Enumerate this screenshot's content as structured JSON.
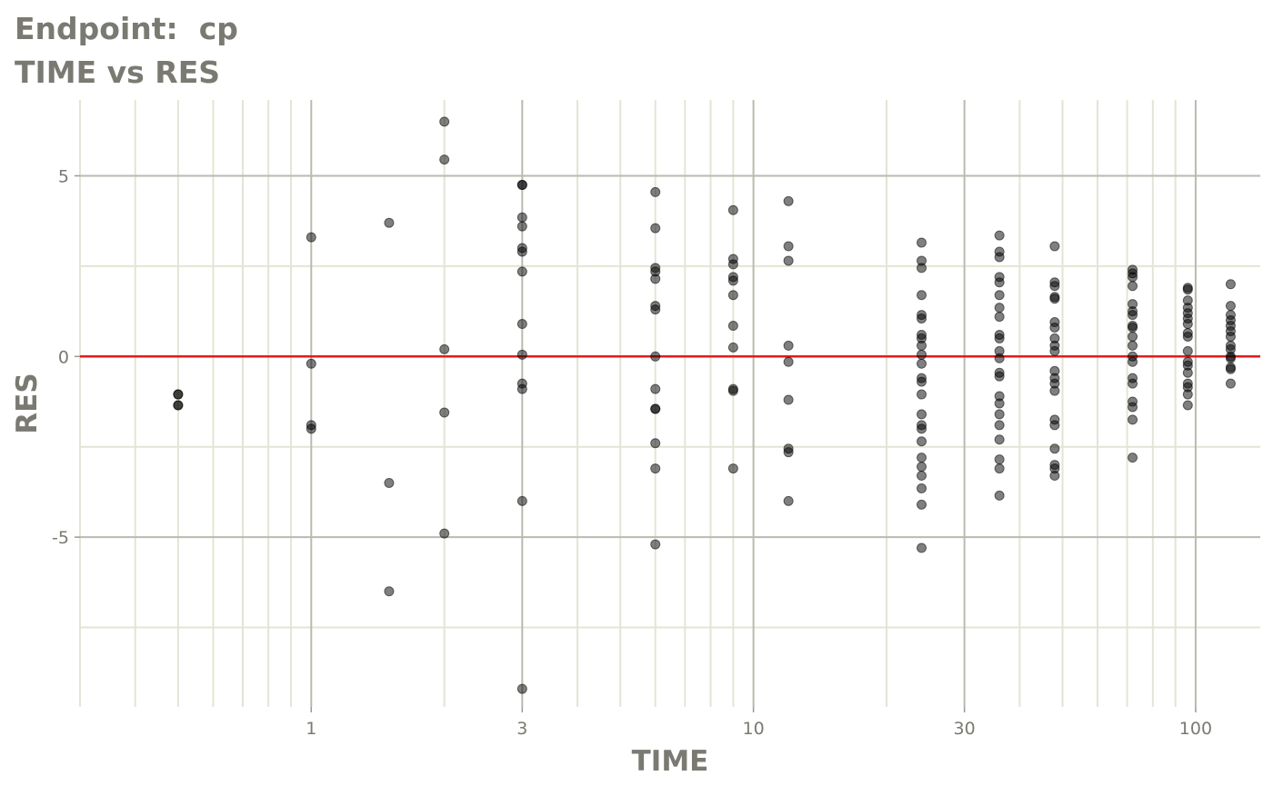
{
  "title_line1": "Endpoint:  cp",
  "title_line2": "TIME vs RES",
  "chart_data": {
    "type": "scatter",
    "title": "Endpoint:  cp\nTIME vs RES",
    "xlabel": "TIME",
    "ylabel": "RES",
    "x_scale": "log10",
    "xlim": [
      0.3,
      140
    ],
    "ylim": [
      -9.7,
      7.1
    ],
    "x_ticks": [
      1,
      3,
      10,
      30,
      100
    ],
    "x_tick_labels": [
      "1",
      "3",
      "10",
      "30",
      "100"
    ],
    "y_ticks": [
      -5,
      0,
      5
    ],
    "y_tick_labels": [
      "-5",
      "0",
      "5"
    ],
    "grid": true,
    "reference_line": {
      "y": 0,
      "color": "#e41a1c"
    },
    "point_color": "#000000",
    "point_alpha": 0.5,
    "points": [
      [
        0.5,
        -1.05
      ],
      [
        0.5,
        -1.35
      ],
      [
        0.5,
        -1.05
      ],
      [
        0.5,
        -1.35
      ],
      [
        1,
        3.3
      ],
      [
        1,
        -0.2
      ],
      [
        1,
        -1.9
      ],
      [
        1,
        -2.0
      ],
      [
        1.5,
        3.7
      ],
      [
        1.5,
        -3.5
      ],
      [
        1.5,
        -6.5
      ],
      [
        2,
        6.5
      ],
      [
        2,
        5.45
      ],
      [
        2,
        0.2
      ],
      [
        2,
        -1.55
      ],
      [
        2,
        -4.9
      ],
      [
        3,
        4.75
      ],
      [
        3,
        4.75
      ],
      [
        3,
        3.85
      ],
      [
        3,
        3.6
      ],
      [
        3,
        3.0
      ],
      [
        3,
        2.9
      ],
      [
        3,
        2.35
      ],
      [
        3,
        0.9
      ],
      [
        3,
        0.05
      ],
      [
        3,
        -0.75
      ],
      [
        3,
        -0.9
      ],
      [
        3,
        -4.0
      ],
      [
        3,
        -9.2
      ],
      [
        6,
        4.55
      ],
      [
        6,
        3.55
      ],
      [
        6,
        2.45
      ],
      [
        6,
        2.35
      ],
      [
        6,
        2.15
      ],
      [
        6,
        1.4
      ],
      [
        6,
        1.3
      ],
      [
        6,
        0.0
      ],
      [
        6,
        -0.9
      ],
      [
        6,
        -1.45
      ],
      [
        6,
        -1.45
      ],
      [
        6,
        -2.4
      ],
      [
        6,
        -3.1
      ],
      [
        6,
        -5.2
      ],
      [
        9,
        4.05
      ],
      [
        9,
        2.7
      ],
      [
        9,
        2.55
      ],
      [
        9,
        2.2
      ],
      [
        9,
        2.1
      ],
      [
        9,
        1.7
      ],
      [
        9,
        0.85
      ],
      [
        9,
        0.25
      ],
      [
        9,
        -0.9
      ],
      [
        9,
        -0.95
      ],
      [
        9,
        -3.1
      ],
      [
        12,
        4.3
      ],
      [
        12,
        3.05
      ],
      [
        12,
        2.65
      ],
      [
        12,
        0.3
      ],
      [
        12,
        -0.15
      ],
      [
        12,
        -1.2
      ],
      [
        12,
        -2.55
      ],
      [
        12,
        -2.65
      ],
      [
        12,
        -4.0
      ],
      [
        24,
        3.15
      ],
      [
        24,
        2.65
      ],
      [
        24,
        2.45
      ],
      [
        24,
        1.7
      ],
      [
        24,
        1.15
      ],
      [
        24,
        1.05
      ],
      [
        24,
        0.6
      ],
      [
        24,
        0.5
      ],
      [
        24,
        0.3
      ],
      [
        24,
        0.05
      ],
      [
        24,
        -0.2
      ],
      [
        24,
        -0.6
      ],
      [
        24,
        -0.7
      ],
      [
        24,
        -1.05
      ],
      [
        24,
        -1.6
      ],
      [
        24,
        -1.9
      ],
      [
        24,
        -2.0
      ],
      [
        24,
        -2.35
      ],
      [
        24,
        -2.8
      ],
      [
        24,
        -3.05
      ],
      [
        24,
        -3.3
      ],
      [
        24,
        -3.65
      ],
      [
        24,
        -4.1
      ],
      [
        24,
        -5.3
      ],
      [
        36,
        3.35
      ],
      [
        36,
        2.9
      ],
      [
        36,
        2.75
      ],
      [
        36,
        2.2
      ],
      [
        36,
        2.05
      ],
      [
        36,
        1.7
      ],
      [
        36,
        1.35
      ],
      [
        36,
        1.1
      ],
      [
        36,
        0.6
      ],
      [
        36,
        0.5
      ],
      [
        36,
        0.15
      ],
      [
        36,
        -0.05
      ],
      [
        36,
        -0.45
      ],
      [
        36,
        -0.55
      ],
      [
        36,
        -1.1
      ],
      [
        36,
        -1.3
      ],
      [
        36,
        -1.6
      ],
      [
        36,
        -1.9
      ],
      [
        36,
        -2.3
      ],
      [
        36,
        -2.85
      ],
      [
        36,
        -3.1
      ],
      [
        36,
        -3.85
      ],
      [
        48,
        3.05
      ],
      [
        48,
        2.05
      ],
      [
        48,
        1.95
      ],
      [
        48,
        1.65
      ],
      [
        48,
        1.6
      ],
      [
        48,
        0.95
      ],
      [
        48,
        0.8
      ],
      [
        48,
        0.5
      ],
      [
        48,
        0.3
      ],
      [
        48,
        0.15
      ],
      [
        48,
        -0.4
      ],
      [
        48,
        -0.6
      ],
      [
        48,
        -0.75
      ],
      [
        48,
        -0.95
      ],
      [
        48,
        -1.75
      ],
      [
        48,
        -1.9
      ],
      [
        48,
        -2.55
      ],
      [
        48,
        -3.0
      ],
      [
        48,
        -3.1
      ],
      [
        48,
        -3.3
      ],
      [
        72,
        2.4
      ],
      [
        72,
        2.3
      ],
      [
        72,
        2.2
      ],
      [
        72,
        1.95
      ],
      [
        72,
        1.45
      ],
      [
        72,
        1.25
      ],
      [
        72,
        1.15
      ],
      [
        72,
        0.85
      ],
      [
        72,
        0.8
      ],
      [
        72,
        0.55
      ],
      [
        72,
        0.3
      ],
      [
        72,
        0.0
      ],
      [
        72,
        -0.15
      ],
      [
        72,
        -0.6
      ],
      [
        72,
        -0.75
      ],
      [
        72,
        -1.25
      ],
      [
        72,
        -1.4
      ],
      [
        72,
        -1.75
      ],
      [
        72,
        -2.8
      ],
      [
        96,
        1.9
      ],
      [
        96,
        1.85
      ],
      [
        96,
        1.55
      ],
      [
        96,
        1.35
      ],
      [
        96,
        1.2
      ],
      [
        96,
        1.05
      ],
      [
        96,
        0.9
      ],
      [
        96,
        0.65
      ],
      [
        96,
        0.55
      ],
      [
        96,
        0.15
      ],
      [
        96,
        -0.15
      ],
      [
        96,
        -0.25
      ],
      [
        96,
        -0.45
      ],
      [
        96,
        -0.75
      ],
      [
        96,
        -0.85
      ],
      [
        96,
        -1.05
      ],
      [
        96,
        -1.35
      ],
      [
        120,
        2.0
      ],
      [
        120,
        1.4
      ],
      [
        120,
        1.15
      ],
      [
        120,
        1.0
      ],
      [
        120,
        0.85
      ],
      [
        120,
        0.7
      ],
      [
        120,
        0.55
      ],
      [
        120,
        0.3
      ],
      [
        120,
        0.2
      ],
      [
        120,
        0.0
      ],
      [
        120,
        -0.05
      ],
      [
        120,
        -0.3
      ],
      [
        120,
        -0.35
      ],
      [
        120,
        -0.75
      ]
    ]
  }
}
